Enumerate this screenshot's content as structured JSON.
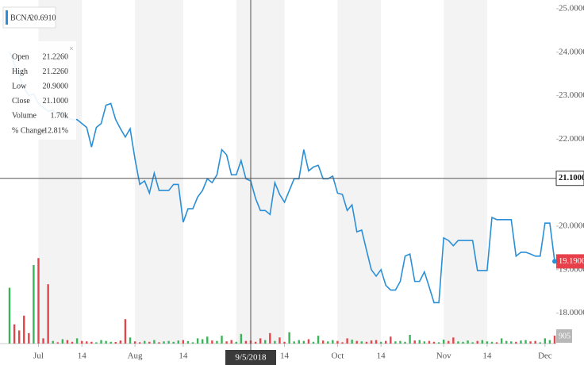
{
  "chart_data": {
    "type": "line",
    "legend_value": "20.6910",
    "ylim": [
      17.3,
      25.2
    ],
    "yticks": [
      {
        "value": 18,
        "label": "18.0000"
      },
      {
        "value": 19,
        "label": "19.0000"
      },
      {
        "value": 20,
        "label": "20.0000"
      },
      {
        "value": 21,
        "label": "21.0000"
      },
      {
        "value": 22,
        "label": "22.0000"
      },
      {
        "value": 23,
        "label": "23.0000"
      },
      {
        "value": 24,
        "label": "24.0000"
      },
      {
        "value": 25,
        "label": "25.0000"
      }
    ],
    "categories": [
      null,
      null,
      null,
      null,
      null,
      null,
      "Jul",
      null,
      null,
      null,
      null,
      null,
      null,
      null,
      null,
      "14",
      null,
      null,
      null,
      null,
      null,
      null,
      null,
      null,
      null,
      null,
      "Aug",
      null,
      null,
      null,
      null,
      null,
      null,
      null,
      null,
      null,
      "14",
      null,
      null,
      null,
      null,
      null,
      null,
      null,
      null,
      null,
      null,
      null,
      null,
      null,
      "9/5/2018",
      null,
      null,
      null,
      null,
      null,
      null,
      "14",
      null,
      null,
      null,
      null,
      null,
      null,
      null,
      null,
      null,
      null,
      "Oct",
      null,
      null,
      null,
      null,
      null,
      null,
      null,
      null,
      "14",
      null,
      null,
      null,
      null,
      null,
      null,
      null,
      null,
      null,
      null,
      null,
      null,
      "Nov",
      null,
      null,
      null,
      null,
      null,
      null,
      null,
      null,
      "14",
      null,
      null,
      null,
      null,
      null,
      null,
      null,
      null,
      null,
      null,
      null,
      "Dec",
      null,
      null
    ],
    "series": [
      {
        "name": "BCNA",
        "color": "#2a8fd6",
        "values": [
          24.0,
          23.73,
          23.45,
          23.18,
          23.0,
          23.04,
          22.82,
          22.73,
          22.64,
          22.67,
          22.55,
          22.6,
          22.49,
          22.45,
          22.45,
          22.36,
          22.27,
          21.82,
          22.27,
          22.36,
          22.78,
          22.82,
          22.45,
          22.24,
          22.05,
          22.24,
          21.55,
          20.96,
          21.04,
          20.76,
          21.22,
          20.82,
          20.82,
          20.82,
          20.96,
          20.96,
          20.09,
          20.4,
          20.4,
          20.67,
          20.82,
          21.09,
          21.0,
          21.18,
          21.76,
          21.64,
          21.18,
          21.18,
          21.51,
          21.09,
          21.04,
          20.64,
          20.36,
          20.36,
          20.27,
          21.0,
          20.73,
          20.55,
          20.82,
          21.09,
          21.09,
          21.76,
          21.27,
          21.36,
          21.4,
          21.09,
          21.09,
          21.15,
          20.76,
          20.73,
          20.36,
          20.49,
          19.87,
          19.91,
          19.45,
          19.0,
          18.85,
          19.0,
          18.64,
          18.53,
          18.53,
          18.73,
          19.31,
          19.36,
          18.73,
          18.73,
          18.95,
          18.6,
          18.24,
          18.24,
          19.73,
          19.67,
          19.55,
          19.67,
          19.67,
          19.67,
          19.67,
          18.98,
          18.98,
          18.98,
          20.2,
          20.15,
          20.15,
          20.15,
          20.15,
          19.31,
          19.4,
          19.4,
          19.36,
          19.31,
          19.31,
          20.07,
          20.07,
          19.19
        ],
        "value_labels": [
          null,
          null,
          null,
          null,
          null,
          null,
          null,
          null,
          null,
          null,
          null,
          null,
          null,
          null,
          null,
          null,
          null,
          null,
          null,
          null,
          null,
          null,
          null,
          null,
          null,
          null,
          null,
          null,
          null,
          null,
          null,
          null,
          null,
          null,
          null,
          null,
          null,
          null,
          null,
          null,
          null,
          null,
          null,
          null,
          null,
          null,
          null,
          null,
          null,
          null,
          null,
          null,
          null,
          null,
          null,
          null,
          null,
          null,
          null,
          null,
          null,
          null,
          null,
          null,
          null,
          null,
          null,
          null,
          null,
          null,
          null,
          null,
          null,
          null,
          null,
          null,
          null,
          null,
          null,
          null,
          null,
          null,
          null,
          null,
          null,
          null,
          null,
          null,
          null,
          null,
          null,
          null,
          null,
          null,
          null,
          null,
          null,
          null,
          null,
          null,
          null,
          null,
          null,
          null,
          null,
          null,
          null,
          null,
          null,
          null,
          null,
          null,
          null,
          "19.1900"
        ]
      }
    ],
    "volume": {
      "ylim": [
        0,
        10000
      ],
      "up_color": "#3cb35a",
      "down_color": "#e0474c",
      "values": [
        6400,
        2200,
        1500,
        3200,
        1200,
        9000,
        9800,
        600,
        6800,
        300,
        150,
        500,
        400,
        200,
        600,
        300,
        250,
        200,
        150,
        400,
        300,
        200,
        180,
        350,
        2800,
        700,
        250,
        150,
        300,
        200,
        400,
        150,
        250,
        300,
        200,
        350,
        400,
        280,
        150,
        600,
        500,
        800,
        350,
        300,
        900,
        250,
        400,
        200,
        1100,
        300,
        350,
        200,
        600,
        400,
        1200,
        300,
        700,
        200,
        1300,
        250,
        400,
        300,
        500,
        200,
        900,
        350,
        250,
        400,
        300,
        150,
        600,
        450,
        300,
        250,
        200,
        350,
        400,
        200,
        300,
        800,
        250,
        300,
        200,
        1000,
        350,
        400,
        250,
        300,
        200,
        150,
        450,
        300,
        700,
        250,
        200,
        350,
        150,
        300,
        400,
        250,
        200,
        150,
        600,
        300,
        250,
        200,
        350,
        400,
        250,
        300,
        150,
        600,
        400,
        905
      ]
    },
    "crosshair": {
      "y": {
        "value": 21.1,
        "label": "21.1000"
      }
    },
    "tooltip": {
      "rows": [
        {
          "label": "Open",
          "value": "21.2260"
        },
        {
          "label": "High",
          "value": "21.2260"
        },
        {
          "label": "Low",
          "value": "20.9000"
        },
        {
          "label": "Close",
          "value": "21.1000"
        },
        {
          "label": "Volume",
          "value": "1.70k"
        },
        {
          "label": "% Change",
          "value": "-12.81%"
        }
      ]
    }
  }
}
